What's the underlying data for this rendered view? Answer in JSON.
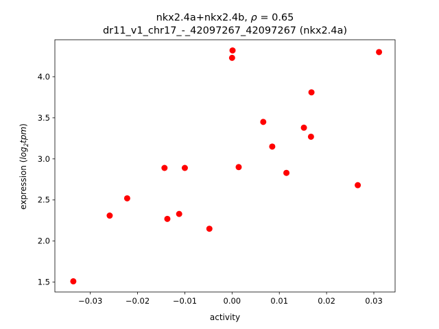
{
  "chart_data": {
    "type": "scatter",
    "title_line1_prefix": "nkx2.4a+nkx2.4b, ",
    "title_rho_symbol": "ρ",
    "title_rho_value": " = 0.65",
    "title_line2": "dr11_v1_chr17_-_42097267_42097267 (nkx2.4a)",
    "xlabel": "activity",
    "ylabel_prefix": "expression (",
    "ylabel_log": "log",
    "ylabel_sub": "2",
    "ylabel_tpm": "tpm",
    "ylabel_suffix": ")",
    "xlim": [
      -0.0375,
      0.0345
    ],
    "ylim": [
      1.38,
      4.45
    ],
    "xticks": [
      -0.03,
      -0.02,
      -0.01,
      0.0,
      0.01,
      0.02,
      0.03
    ],
    "xtick_labels": [
      "−0.03",
      "−0.02",
      "−0.01",
      "0.00",
      "0.01",
      "0.02",
      "0.03"
    ],
    "yticks": [
      1.5,
      2.0,
      2.5,
      3.0,
      3.5,
      4.0
    ],
    "ytick_labels": [
      "1.5",
      "2.0",
      "2.5",
      "3.0",
      "3.5",
      "4.0"
    ],
    "grid": false,
    "marker_color": "#ff0000",
    "points": [
      {
        "x": -0.0336,
        "y": 1.51
      },
      {
        "x": -0.0259,
        "y": 2.31
      },
      {
        "x": -0.0222,
        "y": 2.52
      },
      {
        "x": -0.0143,
        "y": 2.89
      },
      {
        "x": -0.0137,
        "y": 2.27
      },
      {
        "x": -0.0112,
        "y": 2.33
      },
      {
        "x": -0.01,
        "y": 2.89
      },
      {
        "x": -0.0048,
        "y": 2.15
      },
      {
        "x": 0.0,
        "y": 4.23
      },
      {
        "x": 0.0001,
        "y": 4.32
      },
      {
        "x": 0.0014,
        "y": 2.9
      },
      {
        "x": 0.0066,
        "y": 3.45
      },
      {
        "x": 0.0085,
        "y": 3.15
      },
      {
        "x": 0.0115,
        "y": 2.83
      },
      {
        "x": 0.0152,
        "y": 3.38
      },
      {
        "x": 0.0167,
        "y": 3.27
      },
      {
        "x": 0.0168,
        "y": 3.81
      },
      {
        "x": 0.0266,
        "y": 2.68
      },
      {
        "x": 0.0311,
        "y": 4.3
      }
    ]
  }
}
